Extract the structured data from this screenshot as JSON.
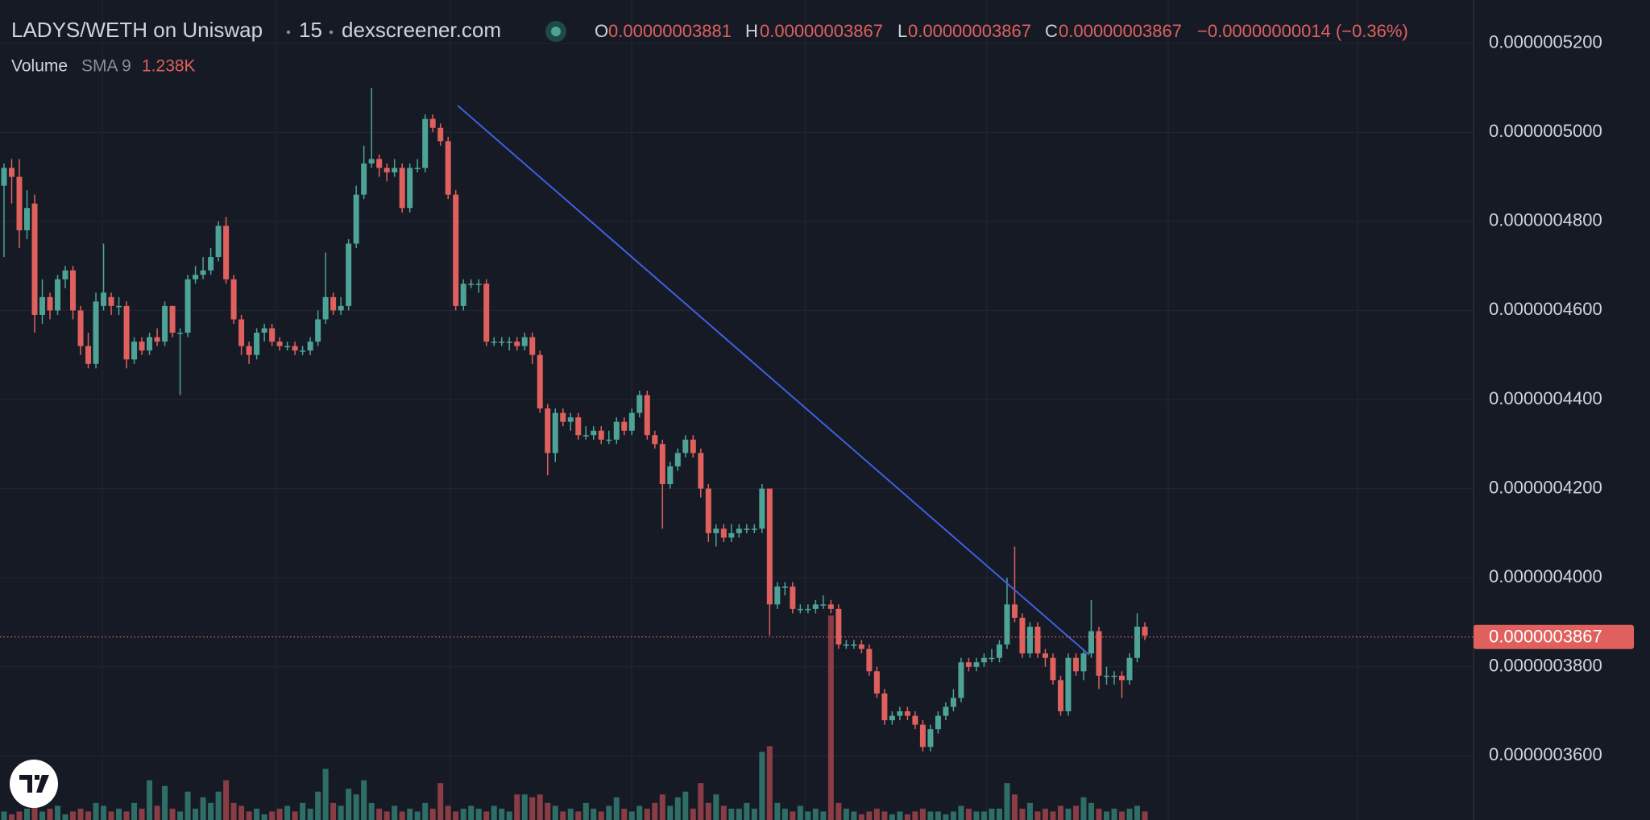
{
  "chart_data": {
    "type": "candlestick",
    "title": "LADYS/WETH on Uniswap",
    "interval": "15",
    "source": "dexscreener.com",
    "ohlc_legend": [
      {
        "label": "O",
        "value": "0.00000003881"
      },
      {
        "label": "H",
        "value": "0.00000003867"
      },
      {
        "label": "L",
        "value": "0.00000003867"
      },
      {
        "label": "C",
        "value": "0.00000003867"
      }
    ],
    "change": "−0.00000000014 (−0.36%)",
    "volume_indicator": {
      "name": "Volume",
      "sma": "SMA 9",
      "value": "1.238K"
    },
    "up_color": "#4ea397",
    "down_color": "#e0605d",
    "volume_up_color": "#2f6e66",
    "volume_down_color": "#8a3d44",
    "grid": true,
    "ylim": [
      3.456e-07,
      5.297e-07
    ],
    "yticks": [
      {
        "value": 5.2e-07,
        "label": "0.0000005200"
      },
      {
        "value": 5e-07,
        "label": "0.0000005000"
      },
      {
        "value": 4.8e-07,
        "label": "0.0000004800"
      },
      {
        "value": 4.6e-07,
        "label": "0.0000004600"
      },
      {
        "value": 4.4e-07,
        "label": "0.0000004400"
      },
      {
        "value": 4.2e-07,
        "label": "0.0000004200"
      },
      {
        "value": 4e-07,
        "label": "0.0000004000"
      },
      {
        "value": 3.8e-07,
        "label": "0.0000003800"
      },
      {
        "value": 3.6e-07,
        "label": "0.0000003600"
      }
    ],
    "last_price": {
      "value": 3.867e-07,
      "label": "0.0000003867"
    },
    "open": [
      4.88e-07,
      4.92e-07,
      4.9e-07,
      4.78e-07,
      4.84e-07,
      4.59e-07,
      4.63e-07,
      4.6e-07,
      4.67e-07,
      4.69e-07,
      4.6e-07,
      4.52e-07,
      4.48e-07,
      4.61e-07,
      4.63e-07,
      4.61e-07,
      4.61e-07,
      4.49e-07,
      4.53e-07,
      4.51e-07,
      4.54e-07,
      4.53e-07,
      4.61e-07,
      4.55e-07,
      4.55e-07,
      4.67e-07,
      4.68e-07,
      4.69e-07,
      4.72e-07,
      4.79e-07,
      4.67e-07,
      4.58e-07,
      4.52e-07,
      4.5e-07,
      4.55e-07,
      4.56e-07,
      4.53e-07,
      4.52e-07,
      4.52e-07,
      4.51e-07,
      4.51e-07,
      4.53e-07,
      4.58e-07,
      4.63e-07,
      4.6e-07,
      4.61e-07,
      4.75e-07,
      4.86e-07,
      4.93e-07,
      4.94e-07,
      4.92e-07,
      4.91e-07,
      4.92e-07,
      4.83e-07,
      4.92e-07,
      4.92e-07,
      5.03e-07,
      5.01e-07,
      4.98e-07,
      4.86e-07,
      4.61e-07,
      4.66e-07,
      4.66e-07,
      4.66e-07,
      4.53e-07,
      4.53e-07,
      4.53e-07,
      4.53e-07,
      4.52e-07,
      4.54e-07,
      4.5e-07,
      4.38e-07,
      4.28e-07,
      4.37e-07,
      4.35e-07,
      4.36e-07,
      4.32e-07,
      4.32e-07,
      4.33e-07,
      4.31e-07,
      4.31e-07,
      4.35e-07,
      4.33e-07,
      4.37e-07,
      4.41e-07,
      4.32e-07,
      4.3e-07,
      4.21e-07,
      4.25e-07,
      4.28e-07,
      4.31e-07,
      4.28e-07,
      4.2e-07,
      4.1e-07,
      4.11e-07,
      4.09e-07,
      4.1e-07,
      4.11e-07,
      4.11e-07,
      4.11e-07,
      4.2e-07,
      3.94e-07,
      3.98e-07,
      3.98e-07,
      3.93e-07,
      3.93e-07,
      3.93e-07,
      3.94e-07,
      3.94e-07,
      3.93e-07,
      3.85e-07,
      3.85e-07,
      3.85e-07,
      3.84e-07,
      3.79e-07,
      3.74e-07,
      3.68e-07,
      3.69e-07,
      3.7e-07,
      3.69e-07,
      3.67e-07,
      3.62e-07,
      3.66e-07,
      3.69e-07,
      3.71e-07,
      3.73e-07,
      3.81e-07,
      3.8e-07,
      3.81e-07,
      3.82e-07,
      3.82e-07,
      3.85e-07,
      3.94e-07,
      3.91e-07,
      3.83e-07,
      3.89e-07,
      3.83e-07,
      3.82e-07,
      3.77e-07,
      3.7e-07,
      3.82e-07,
      3.79e-07,
      3.83e-07,
      3.88e-07,
      3.78e-07,
      3.78e-07,
      3.78e-07,
      3.77e-07,
      3.82e-07,
      3.89e-07
    ],
    "high": [
      4.93e-07,
      4.94e-07,
      4.94e-07,
      4.87e-07,
      4.86e-07,
      4.67e-07,
      4.64e-07,
      4.68e-07,
      4.7e-07,
      4.7e-07,
      4.61e-07,
      4.55e-07,
      4.64e-07,
      4.75e-07,
      4.64e-07,
      4.63e-07,
      4.62e-07,
      4.54e-07,
      4.54e-07,
      4.55e-07,
      4.56e-07,
      4.62e-07,
      4.61e-07,
      4.56e-07,
      4.68e-07,
      4.7e-07,
      4.72e-07,
      4.74e-07,
      4.8e-07,
      4.81e-07,
      4.68e-07,
      4.59e-07,
      4.53e-07,
      4.56e-07,
      4.57e-07,
      4.57e-07,
      4.54e-07,
      4.53e-07,
      4.53e-07,
      4.52e-07,
      4.54e-07,
      4.6e-07,
      4.73e-07,
      4.64e-07,
      4.63e-07,
      4.76e-07,
      4.88e-07,
      4.97e-07,
      5.1e-07,
      4.95e-07,
      4.93e-07,
      4.94e-07,
      4.93e-07,
      4.93e-07,
      4.94e-07,
      5.04e-07,
      5.04e-07,
      5.02e-07,
      4.99e-07,
      4.87e-07,
      4.67e-07,
      4.67e-07,
      4.67e-07,
      4.67e-07,
      4.54e-07,
      4.54e-07,
      4.54e-07,
      4.54e-07,
      4.55e-07,
      4.55e-07,
      4.51e-07,
      4.39e-07,
      4.38e-07,
      4.38e-07,
      4.37e-07,
      4.37e-07,
      4.34e-07,
      4.34e-07,
      4.34e-07,
      4.33e-07,
      4.36e-07,
      4.36e-07,
      4.38e-07,
      4.42e-07,
      4.42e-07,
      4.33e-07,
      4.31e-07,
      4.26e-07,
      4.29e-07,
      4.32e-07,
      4.32e-07,
      4.29e-07,
      4.21e-07,
      4.12e-07,
      4.12e-07,
      4.12e-07,
      4.12e-07,
      4.12e-07,
      4.12e-07,
      4.21e-07,
      4.2e-07,
      3.99e-07,
      3.99e-07,
      3.99e-07,
      3.94e-07,
      3.94e-07,
      3.95e-07,
      3.96e-07,
      3.95e-07,
      3.94e-07,
      3.86e-07,
      3.86e-07,
      3.86e-07,
      3.85e-07,
      3.8e-07,
      3.75e-07,
      3.7e-07,
      3.71e-07,
      3.71e-07,
      3.7e-07,
      3.68e-07,
      3.67e-07,
      3.7e-07,
      3.72e-07,
      3.75e-07,
      3.82e-07,
      3.82e-07,
      3.82e-07,
      3.83e-07,
      3.84e-07,
      3.86e-07,
      4e-07,
      4.07e-07,
      3.92e-07,
      3.9e-07,
      3.9e-07,
      3.84e-07,
      3.83e-07,
      3.78e-07,
      3.83e-07,
      3.83e-07,
      3.84e-07,
      3.95e-07,
      3.89e-07,
      3.8e-07,
      3.79e-07,
      3.79e-07,
      3.83e-07,
      3.92e-07,
      3.9e-07
    ],
    "low": [
      4.72e-07,
      4.84e-07,
      4.74e-07,
      4.76e-07,
      4.55e-07,
      4.57e-07,
      4.58e-07,
      4.59e-07,
      4.65e-07,
      4.58e-07,
      4.5e-07,
      4.47e-07,
      4.47e-07,
      4.6e-07,
      4.59e-07,
      4.59e-07,
      4.47e-07,
      4.48e-07,
      4.5e-07,
      4.5e-07,
      4.52e-07,
      4.52e-07,
      4.54e-07,
      4.41e-07,
      4.54e-07,
      4.66e-07,
      4.67e-07,
      4.68e-07,
      4.71e-07,
      4.66e-07,
      4.57e-07,
      4.5e-07,
      4.48e-07,
      4.49e-07,
      4.53e-07,
      4.52e-07,
      4.51e-07,
      4.51e-07,
      4.5e-07,
      4.5e-07,
      4.5e-07,
      4.52e-07,
      4.57e-07,
      4.59e-07,
      4.59e-07,
      4.6e-07,
      4.74e-07,
      4.85e-07,
      4.92e-07,
      4.9e-07,
      4.89e-07,
      4.9e-07,
      4.82e-07,
      4.82e-07,
      4.91e-07,
      4.91e-07,
      5e-07,
      4.97e-07,
      4.85e-07,
      4.6e-07,
      4.6e-07,
      4.65e-07,
      4.64e-07,
      4.52e-07,
      4.52e-07,
      4.52e-07,
      4.51e-07,
      4.51e-07,
      4.51e-07,
      4.48e-07,
      4.37e-07,
      4.23e-07,
      4.26e-07,
      4.34e-07,
      4.33e-07,
      4.31e-07,
      4.31e-07,
      4.31e-07,
      4.3e-07,
      4.3e-07,
      4.3e-07,
      4.32e-07,
      4.32e-07,
      4.36e-07,
      4.31e-07,
      4.29e-07,
      4.11e-07,
      4.2e-07,
      4.24e-07,
      4.27e-07,
      4.27e-07,
      4.18e-07,
      4.08e-07,
      4.07e-07,
      4.08e-07,
      4.08e-07,
      4.09e-07,
      4.1e-07,
      4.1e-07,
      4.1e-07,
      3.87e-07,
      3.93e-07,
      3.96e-07,
      3.92e-07,
      3.92e-07,
      3.92e-07,
      3.92e-07,
      3.93e-07,
      3.92e-07,
      3.84e-07,
      3.84e-07,
      3.84e-07,
      3.83e-07,
      3.78e-07,
      3.73e-07,
      3.67e-07,
      3.67e-07,
      3.68e-07,
      3.68e-07,
      3.66e-07,
      3.61e-07,
      3.61e-07,
      3.65e-07,
      3.68e-07,
      3.7e-07,
      3.72e-07,
      3.79e-07,
      3.79e-07,
      3.8e-07,
      3.81e-07,
      3.81e-07,
      3.84e-07,
      3.9e-07,
      3.82e-07,
      3.82e-07,
      3.82e-07,
      3.8e-07,
      3.76e-07,
      3.69e-07,
      3.69e-07,
      3.78e-07,
      3.77e-07,
      3.82e-07,
      3.75e-07,
      3.76e-07,
      3.76e-07,
      3.73e-07,
      3.76e-07,
      3.81e-07,
      3.86e-07
    ],
    "close": [
      4.92e-07,
      4.9e-07,
      4.78e-07,
      4.83e-07,
      4.59e-07,
      4.63e-07,
      4.6e-07,
      4.67e-07,
      4.69e-07,
      4.6e-07,
      4.52e-07,
      4.48e-07,
      4.62e-07,
      4.64e-07,
      4.61e-07,
      4.61e-07,
      4.49e-07,
      4.53e-07,
      4.51e-07,
      4.54e-07,
      4.53e-07,
      4.61e-07,
      4.55e-07,
      4.55e-07,
      4.67e-07,
      4.68e-07,
      4.69e-07,
      4.72e-07,
      4.79e-07,
      4.67e-07,
      4.58e-07,
      4.52e-07,
      4.5e-07,
      4.55e-07,
      4.56e-07,
      4.53e-07,
      4.52e-07,
      4.52e-07,
      4.51e-07,
      4.51e-07,
      4.53e-07,
      4.58e-07,
      4.63e-07,
      4.6e-07,
      4.61e-07,
      4.75e-07,
      4.86e-07,
      4.93e-07,
      4.94e-07,
      4.92e-07,
      4.91e-07,
      4.92e-07,
      4.83e-07,
      4.92e-07,
      4.92e-07,
      5.03e-07,
      5.01e-07,
      4.98e-07,
      4.86e-07,
      4.61e-07,
      4.66e-07,
      4.66e-07,
      4.66e-07,
      4.53e-07,
      4.53e-07,
      4.53e-07,
      4.53e-07,
      4.52e-07,
      4.54e-07,
      4.5e-07,
      4.38e-07,
      4.28e-07,
      4.37e-07,
      4.35e-07,
      4.36e-07,
      4.32e-07,
      4.32e-07,
      4.33e-07,
      4.31e-07,
      4.31e-07,
      4.35e-07,
      4.33e-07,
      4.37e-07,
      4.41e-07,
      4.32e-07,
      4.3e-07,
      4.21e-07,
      4.25e-07,
      4.28e-07,
      4.31e-07,
      4.28e-07,
      4.2e-07,
      4.1e-07,
      4.11e-07,
      4.09e-07,
      4.1e-07,
      4.11e-07,
      4.11e-07,
      4.11e-07,
      4.2e-07,
      3.94e-07,
      3.98e-07,
      3.98e-07,
      3.93e-07,
      3.93e-07,
      3.93e-07,
      3.94e-07,
      3.94e-07,
      3.93e-07,
      3.85e-07,
      3.85e-07,
      3.85e-07,
      3.84e-07,
      3.79e-07,
      3.74e-07,
      3.68e-07,
      3.69e-07,
      3.7e-07,
      3.69e-07,
      3.67e-07,
      3.62e-07,
      3.66e-07,
      3.69e-07,
      3.71e-07,
      3.73e-07,
      3.81e-07,
      3.8e-07,
      3.81e-07,
      3.82e-07,
      3.82e-07,
      3.85e-07,
      3.94e-07,
      3.91e-07,
      3.83e-07,
      3.89e-07,
      3.83e-07,
      3.82e-07,
      3.77e-07,
      3.7e-07,
      3.82e-07,
      3.79e-07,
      3.83e-07,
      3.88e-07,
      3.78e-07,
      3.78e-07,
      3.78e-07,
      3.77e-07,
      3.82e-07,
      3.89e-07,
      3.87e-07
    ],
    "volume_lim": [
      0,
      8
    ],
    "volume": [
      0.3,
      0.2,
      0.3,
      0.4,
      0.5,
      0.3,
      0.4,
      0.5,
      0.2,
      0.3,
      0.4,
      0.3,
      0.6,
      0.5,
      0.3,
      0.4,
      0.3,
      0.6,
      0.4,
      1.4,
      0.5,
      1.2,
      0.4,
      0.3,
      1.0,
      0.4,
      0.8,
      0.6,
      1.0,
      1.4,
      0.6,
      0.5,
      0.3,
      0.4,
      0.2,
      0.3,
      0.4,
      0.5,
      0.3,
      0.6,
      0.4,
      1.0,
      1.8,
      0.6,
      0.5,
      1.1,
      0.9,
      1.4,
      0.6,
      0.4,
      0.3,
      0.5,
      0.3,
      0.4,
      0.3,
      0.6,
      0.4,
      1.3,
      0.5,
      0.3,
      0.4,
      0.5,
      0.4,
      0.3,
      0.5,
      0.4,
      0.3,
      0.9,
      0.9,
      0.8,
      0.9,
      0.6,
      0.5,
      0.3,
      0.4,
      0.3,
      0.6,
      0.4,
      0.3,
      0.5,
      0.8,
      0.4,
      0.3,
      0.5,
      0.4,
      0.6,
      0.9,
      0.5,
      0.8,
      1.0,
      0.4,
      1.3,
      0.6,
      0.9,
      0.5,
      0.4,
      0.4,
      0.6,
      0.4,
      2.4,
      2.6,
      0.6,
      0.4,
      0.3,
      0.5,
      0.3,
      0.4,
      0.3,
      7.2,
      0.6,
      0.4,
      0.3,
      0.2,
      0.3,
      0.4,
      0.3,
      0.2,
      0.3,
      0.2,
      0.3,
      0.4,
      0.3,
      0.3,
      0.2,
      0.3,
      0.5,
      0.4,
      0.3,
      0.3,
      0.4,
      0.4,
      1.3,
      0.9,
      0.4,
      0.6,
      0.3,
      0.4,
      0.3,
      0.5,
      0.4,
      0.5,
      0.8,
      0.6,
      0.4,
      0.3,
      0.4,
      0.3,
      0.4,
      0.5,
      0.3
    ]
  }
}
